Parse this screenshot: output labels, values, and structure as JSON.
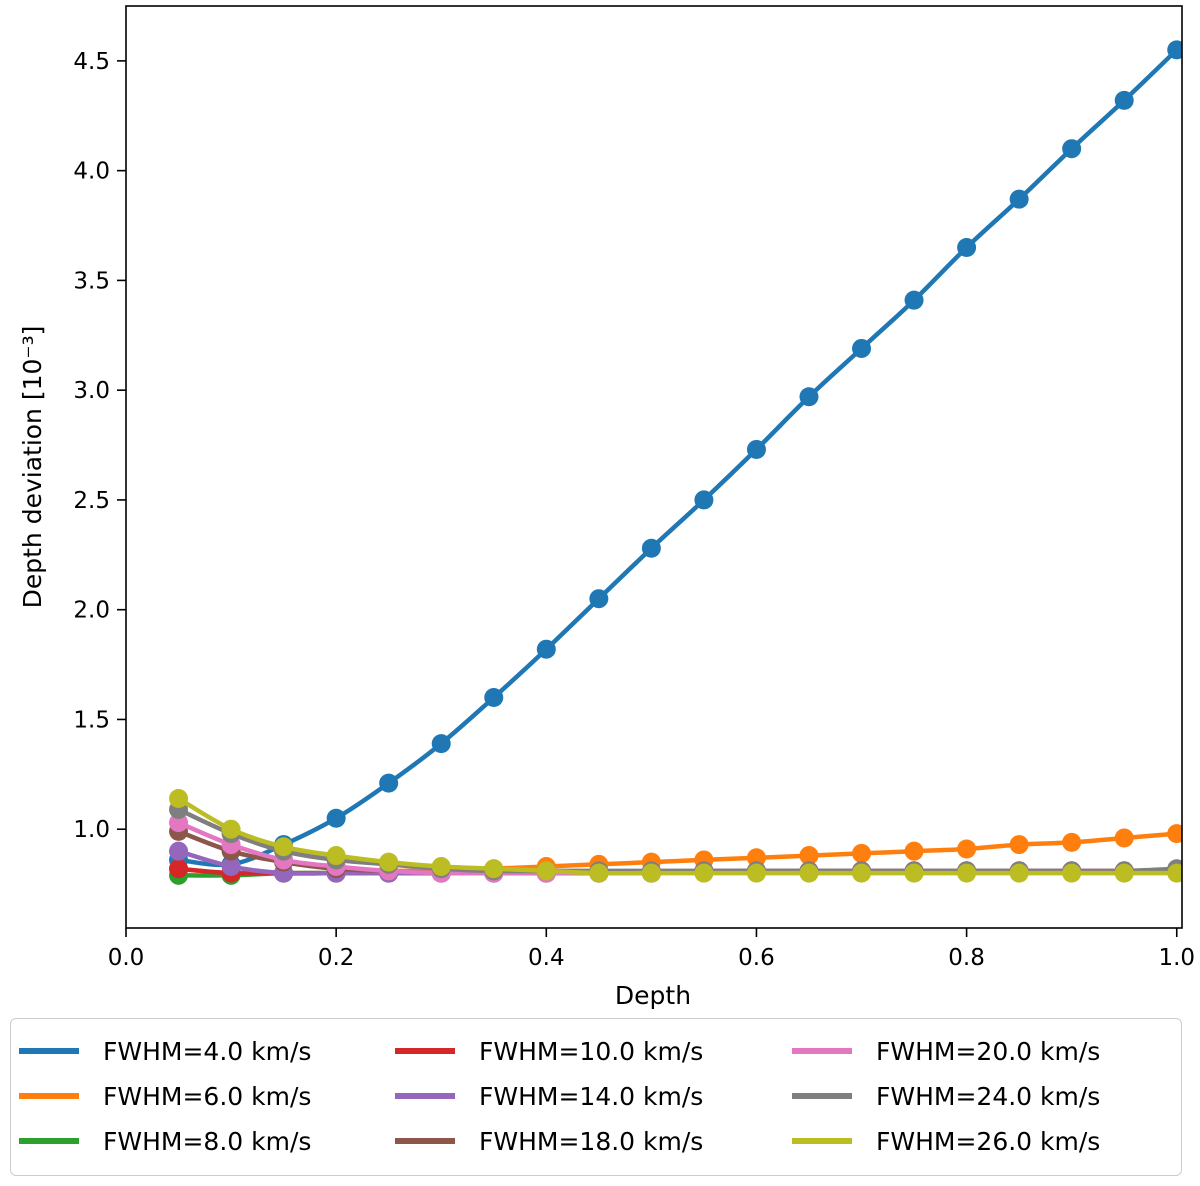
{
  "chart_data": {
    "type": "line",
    "title": "",
    "xlabel": "Depth",
    "ylabel": "Depth deviation [10⁻³]",
    "xlim": [
      0.0,
      1.005
    ],
    "ylim": [
      0.55,
      4.75
    ],
    "x_ticks": [
      "0.0",
      "0.2",
      "0.4",
      "0.6",
      "0.8",
      "1.0"
    ],
    "y_ticks": [
      "1.0",
      "1.5",
      "2.0",
      "2.5",
      "3.0",
      "3.5",
      "4.0",
      "4.5"
    ],
    "x": [
      0.05,
      0.1,
      0.15,
      0.2,
      0.25,
      0.3,
      0.35,
      0.4,
      0.45,
      0.5,
      0.55,
      0.6,
      0.65,
      0.7,
      0.75,
      0.8,
      0.85,
      0.9,
      0.95,
      1.0
    ],
    "series": [
      {
        "name": "FWHM=4.0 km/s",
        "color": "#1f77b4",
        "values": [
          0.86,
          0.84,
          0.93,
          1.05,
          1.21,
          1.39,
          1.6,
          1.82,
          2.05,
          2.28,
          2.5,
          2.73,
          2.97,
          3.19,
          3.41,
          3.65,
          3.87,
          4.1,
          4.32,
          4.55
        ]
      },
      {
        "name": "FWHM=6.0 km/s",
        "color": "#ff7f0e",
        "values": [
          0.82,
          0.8,
          0.8,
          0.8,
          0.81,
          0.81,
          0.82,
          0.83,
          0.84,
          0.85,
          0.86,
          0.87,
          0.88,
          0.89,
          0.9,
          0.91,
          0.93,
          0.94,
          0.96,
          0.98
        ]
      },
      {
        "name": "FWHM=8.0 km/s",
        "color": "#2ca02c",
        "values": [
          0.79,
          0.79,
          0.8,
          0.8,
          0.8,
          0.8,
          0.8,
          0.8,
          0.8,
          0.8,
          0.81,
          0.81,
          0.81,
          0.81,
          0.81,
          0.81,
          0.81,
          0.81,
          0.81,
          0.81
        ]
      },
      {
        "name": "FWHM=10.0 km/s",
        "color": "#d62728",
        "values": [
          0.82,
          0.8,
          0.8,
          0.8,
          0.8,
          0.8,
          0.8,
          0.8,
          0.8,
          0.8,
          0.81,
          0.81,
          0.81,
          0.81,
          0.81,
          0.81,
          0.81,
          0.81,
          0.81,
          0.81
        ]
      },
      {
        "name": "FWHM=14.0 km/s",
        "color": "#9467bd",
        "values": [
          0.9,
          0.83,
          0.8,
          0.8,
          0.8,
          0.8,
          0.8,
          0.8,
          0.8,
          0.8,
          0.81,
          0.81,
          0.81,
          0.81,
          0.81,
          0.81,
          0.81,
          0.81,
          0.81,
          0.81
        ]
      },
      {
        "name": "FWHM=18.0 km/s",
        "color": "#8c564b",
        "values": [
          0.99,
          0.9,
          0.85,
          0.82,
          0.81,
          0.8,
          0.8,
          0.8,
          0.8,
          0.8,
          0.81,
          0.81,
          0.81,
          0.81,
          0.81,
          0.81,
          0.81,
          0.81,
          0.81,
          0.81
        ]
      },
      {
        "name": "FWHM=20.0 km/s",
        "color": "#e377c2",
        "values": [
          1.03,
          0.93,
          0.86,
          0.83,
          0.81,
          0.8,
          0.8,
          0.8,
          0.8,
          0.8,
          0.81,
          0.81,
          0.81,
          0.81,
          0.81,
          0.81,
          0.81,
          0.81,
          0.81,
          0.81
        ]
      },
      {
        "name": "FWHM=24.0 km/s",
        "color": "#7f7f7f",
        "values": [
          1.09,
          0.98,
          0.9,
          0.86,
          0.84,
          0.82,
          0.81,
          0.81,
          0.81,
          0.81,
          0.81,
          0.81,
          0.81,
          0.81,
          0.81,
          0.81,
          0.81,
          0.81,
          0.81,
          0.82
        ]
      },
      {
        "name": "FWHM=26.0 km/s",
        "color": "#bcbd22",
        "values": [
          1.14,
          1.0,
          0.92,
          0.88,
          0.85,
          0.83,
          0.82,
          0.81,
          0.8,
          0.8,
          0.8,
          0.8,
          0.8,
          0.8,
          0.8,
          0.8,
          0.8,
          0.8,
          0.8,
          0.8
        ]
      }
    ],
    "legend": {
      "placement": "bottom",
      "columns": 3,
      "entries": [
        "FWHM=4.0 km/s",
        "FWHM=6.0 km/s",
        "FWHM=8.0 km/s",
        "FWHM=10.0 km/s",
        "FWHM=14.0 km/s",
        "FWHM=18.0 km/s",
        "FWHM=20.0 km/s",
        "FWHM=24.0 km/s",
        "FWHM=26.0 km/s"
      ]
    },
    "grid": false
  }
}
